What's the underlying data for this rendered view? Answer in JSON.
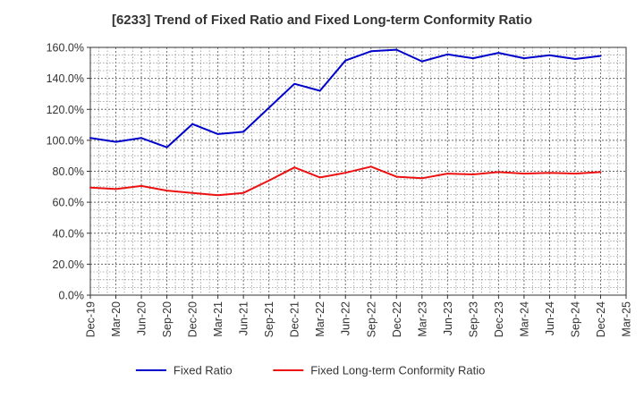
{
  "chart_data": {
    "type": "line",
    "title": "[6233]  Trend of Fixed Ratio and Fixed Long-term Conformity Ratio",
    "xlabel": "",
    "ylabel": "",
    "ylim": [
      0,
      160
    ],
    "y_ticks": [
      "0.0%",
      "20.0%",
      "40.0%",
      "60.0%",
      "80.0%",
      "100.0%",
      "120.0%",
      "140.0%",
      "160.0%"
    ],
    "x_tick_labels": [
      "Dec-19",
      "Mar-20",
      "Jun-20",
      "Sep-20",
      "Dec-20",
      "Mar-21",
      "Jun-21",
      "Sep-21",
      "Dec-21",
      "Mar-22",
      "Jun-22",
      "Sep-22",
      "Dec-22",
      "Mar-23",
      "Jun-23",
      "Sep-23",
      "Dec-23",
      "Mar-24",
      "Jun-24",
      "Sep-24",
      "Dec-24",
      "Mar-25"
    ],
    "categories": [
      "Dec-19",
      "Mar-20",
      "Jun-20",
      "Sep-20",
      "Dec-20",
      "Mar-21",
      "Jun-21",
      "Sep-21",
      "Dec-21",
      "Mar-22",
      "Jun-22",
      "Sep-22",
      "Dec-22",
      "Mar-23",
      "Jun-23",
      "Sep-23",
      "Dec-23",
      "Mar-24",
      "Jun-24",
      "Sep-24",
      "Dec-24"
    ],
    "grid": true,
    "legend_position": "bottom",
    "series": [
      {
        "name": "Fixed Ratio",
        "color": "#0000cc",
        "values": [
          101.5,
          99.0,
          101.5,
          95.5,
          110.5,
          104.0,
          105.5,
          121.0,
          136.5,
          132.0,
          151.5,
          157.5,
          158.5,
          151.0,
          155.5,
          153.0,
          156.5,
          153.0,
          155.0,
          152.5,
          154.5
        ]
      },
      {
        "name": "Fixed Long-term Conformity Ratio",
        "color": "#ee1111",
        "values": [
          69.5,
          68.5,
          70.5,
          67.5,
          66.0,
          64.5,
          66.0,
          74.0,
          82.5,
          76.0,
          79.0,
          83.0,
          76.5,
          75.5,
          78.5,
          78.0,
          79.5,
          78.5,
          79.0,
          78.5,
          79.5
        ]
      }
    ]
  }
}
